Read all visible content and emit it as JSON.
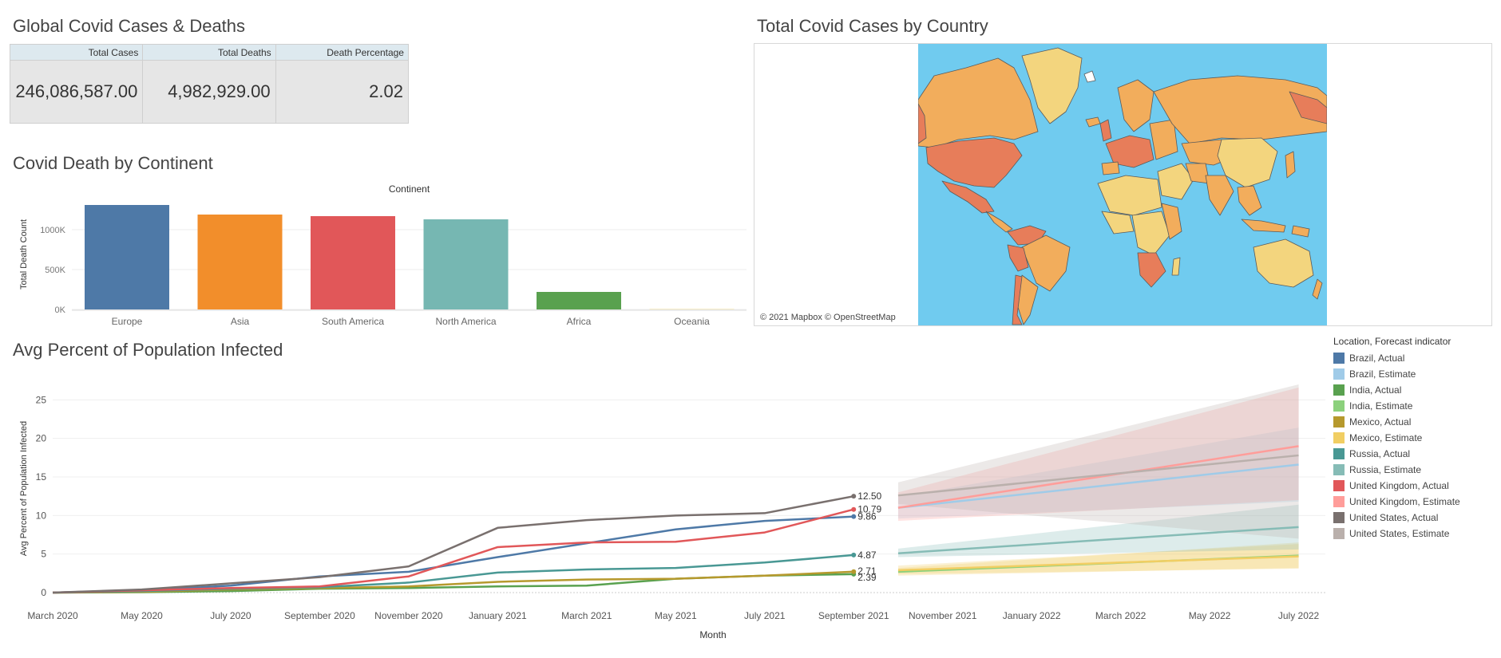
{
  "kpi": {
    "title": "Global Covid Cases & Deaths",
    "headers": [
      "Total Cases",
      "Total Deaths",
      "Death Percentage"
    ],
    "values": [
      "246,086,587.00",
      "4,982,929.00",
      "2.02"
    ]
  },
  "map": {
    "title": "Total Covid Cases by Country",
    "credit": "© 2021 Mapbox © OpenStreetMap",
    "colors": {
      "ocean": "#70cbef",
      "low": "#f3d57e",
      "mid": "#f2ad5c",
      "high": "#e77d5a"
    }
  },
  "legend": {
    "title": "Location, Forecast indicator",
    "items": [
      {
        "label": "Brazil, Actual",
        "color": "#4e79a7"
      },
      {
        "label": "Brazil, Estimate",
        "color": "#a0cbe8"
      },
      {
        "label": "India, Actual",
        "color": "#59a14f"
      },
      {
        "label": "India, Estimate",
        "color": "#8cd17d"
      },
      {
        "label": "Mexico, Actual",
        "color": "#b6992d"
      },
      {
        "label": "Mexico, Estimate",
        "color": "#f1ce63"
      },
      {
        "label": "Russia, Actual",
        "color": "#499894"
      },
      {
        "label": "Russia, Estimate",
        "color": "#86bcb6"
      },
      {
        "label": "United Kingdom, Actual",
        "color": "#e15759"
      },
      {
        "label": "United Kingdom, Estimate",
        "color": "#ff9d9a"
      },
      {
        "label": "United States, Actual",
        "color": "#79706e"
      },
      {
        "label": "United States, Estimate",
        "color": "#bab0ac"
      }
    ]
  },
  "chart_data": [
    {
      "type": "bar",
      "title": "Covid Death by Continent",
      "header": "Continent",
      "ylabel": "Total Death Count",
      "categories": [
        "Europe",
        "Asia",
        "South America",
        "North America",
        "Africa",
        "Oceania"
      ],
      "values": [
        1310000,
        1190000,
        1170000,
        1130000,
        220000,
        3000
      ],
      "colors": [
        "#4e79a7",
        "#f28e2b",
        "#e15759",
        "#76b7b2",
        "#59a14f",
        "#edc948"
      ],
      "ylim": [
        0,
        1380000
      ],
      "yticks": [
        {
          "v": 0,
          "label": "0K"
        },
        {
          "v": 500000,
          "label": "500K"
        },
        {
          "v": 1000000,
          "label": "1000K"
        }
      ]
    },
    {
      "type": "line",
      "title": "Avg Percent of Population Infected",
      "xlabel": "Month",
      "ylabel": "Avg Percent of Population Infected",
      "ylim": [
        0,
        27
      ],
      "yticks": [
        0,
        5,
        10,
        15,
        20,
        25
      ],
      "xticks": [
        "March 2020",
        "May 2020",
        "July 2020",
        "September 2020",
        "November 2020",
        "January 2021",
        "March 2021",
        "May 2021",
        "July 2021",
        "September 2021",
        "November 2021",
        "January 2022",
        "March 2022",
        "May 2022",
        "July 2022"
      ],
      "xtick_months": [
        0,
        2,
        4,
        6,
        8,
        10,
        12,
        14,
        16,
        18,
        20,
        22,
        24,
        26,
        28
      ],
      "end_labels": [
        {
          "text": "12.50",
          "month": 18,
          "y": 12.5
        },
        {
          "text": "10.79",
          "month": 18,
          "y": 10.79
        },
        {
          "text": "9.86",
          "month": 18,
          "y": 9.86
        },
        {
          "text": "4.87",
          "month": 18,
          "y": 4.87
        },
        {
          "text": "2.71",
          "month": 18,
          "y": 2.71
        },
        {
          "text": "2.39",
          "month": 18,
          "y": 2.39
        }
      ],
      "series": [
        {
          "name": "Brazil, Actual",
          "color": "#4e79a7",
          "months": [
            0,
            2,
            4,
            6,
            8,
            10,
            12,
            14,
            16,
            18
          ],
          "values": [
            0.0,
            0.3,
            0.9,
            2.1,
            2.7,
            4.6,
            6.4,
            8.2,
            9.3,
            9.86
          ]
        },
        {
          "name": "India, Actual",
          "color": "#59a14f",
          "months": [
            0,
            2,
            4,
            6,
            8,
            10,
            12,
            14,
            16,
            18
          ],
          "values": [
            0.0,
            0.05,
            0.2,
            0.5,
            0.6,
            0.8,
            0.9,
            1.8,
            2.2,
            2.39
          ]
        },
        {
          "name": "Mexico, Actual",
          "color": "#b6992d",
          "months": [
            0,
            2,
            4,
            6,
            8,
            10,
            12,
            14,
            16,
            18
          ],
          "values": [
            0.0,
            0.1,
            0.4,
            0.6,
            0.8,
            1.4,
            1.7,
            1.8,
            2.2,
            2.71
          ]
        },
        {
          "name": "Russia, Actual",
          "color": "#499894",
          "months": [
            0,
            2,
            4,
            6,
            8,
            10,
            12,
            14,
            16,
            18
          ],
          "values": [
            0.0,
            0.2,
            0.5,
            0.7,
            1.3,
            2.6,
            3.0,
            3.2,
            3.9,
            4.87
          ]
        },
        {
          "name": "United Kingdom, Actual",
          "color": "#e15759",
          "months": [
            0,
            2,
            4,
            6,
            8,
            10,
            12,
            14,
            16,
            18
          ],
          "values": [
            0.0,
            0.3,
            0.6,
            0.8,
            2.1,
            5.9,
            6.5,
            6.6,
            7.8,
            10.79
          ]
        },
        {
          "name": "United States, Actual",
          "color": "#79706e",
          "months": [
            0,
            2,
            4,
            6,
            8,
            10,
            12,
            14,
            16,
            18
          ],
          "values": [
            0.0,
            0.4,
            1.2,
            2.0,
            3.4,
            8.4,
            9.4,
            10.0,
            10.3,
            12.5
          ]
        },
        {
          "name": "Brazil, Estimate",
          "color": "#a0cbe8",
          "months": [
            19,
            28
          ],
          "values": [
            11.0,
            16.6
          ],
          "band_color": "#a0cbe8",
          "band_lo": [
            9.6,
            11.8
          ],
          "band_hi": [
            12.4,
            21.4
          ]
        },
        {
          "name": "India, Estimate",
          "color": "#8cd17d",
          "months": [
            19,
            28
          ],
          "values": [
            2.7,
            4.8
          ],
          "band_color": "#f1ce63",
          "band_lo": [
            2.2,
            3.2
          ],
          "band_hi": [
            3.2,
            6.5
          ]
        },
        {
          "name": "Mexico, Estimate",
          "color": "#f1ce63",
          "months": [
            19,
            28
          ],
          "values": [
            2.9,
            4.7
          ],
          "band_color": "#f1ce63",
          "band_lo": [
            2.4,
            3.1
          ],
          "band_hi": [
            3.5,
            6.3
          ]
        },
        {
          "name": "Russia, Estimate",
          "color": "#86bcb6",
          "months": [
            19,
            28
          ],
          "values": [
            5.1,
            8.5
          ],
          "band_color": "#86bcb6",
          "band_lo": [
            4.6,
            5.6
          ],
          "band_hi": [
            5.7,
            11.4
          ]
        },
        {
          "name": "United Kingdom, Estimate",
          "color": "#ff9d9a",
          "months": [
            19,
            28
          ],
          "values": [
            11.0,
            19.0
          ],
          "band_color": "#ff9d9a",
          "band_lo": [
            9.3,
            12.0
          ],
          "band_hi": [
            13.0,
            26.6
          ]
        },
        {
          "name": "United States, Estimate",
          "color": "#bab0ac",
          "months": [
            19,
            28
          ],
          "values": [
            12.6,
            17.8
          ],
          "band_color": "#bab0ac",
          "band_lo": [
            11.5,
            7.0
          ],
          "band_hi": [
            14.3,
            27.0
          ]
        }
      ]
    }
  ]
}
